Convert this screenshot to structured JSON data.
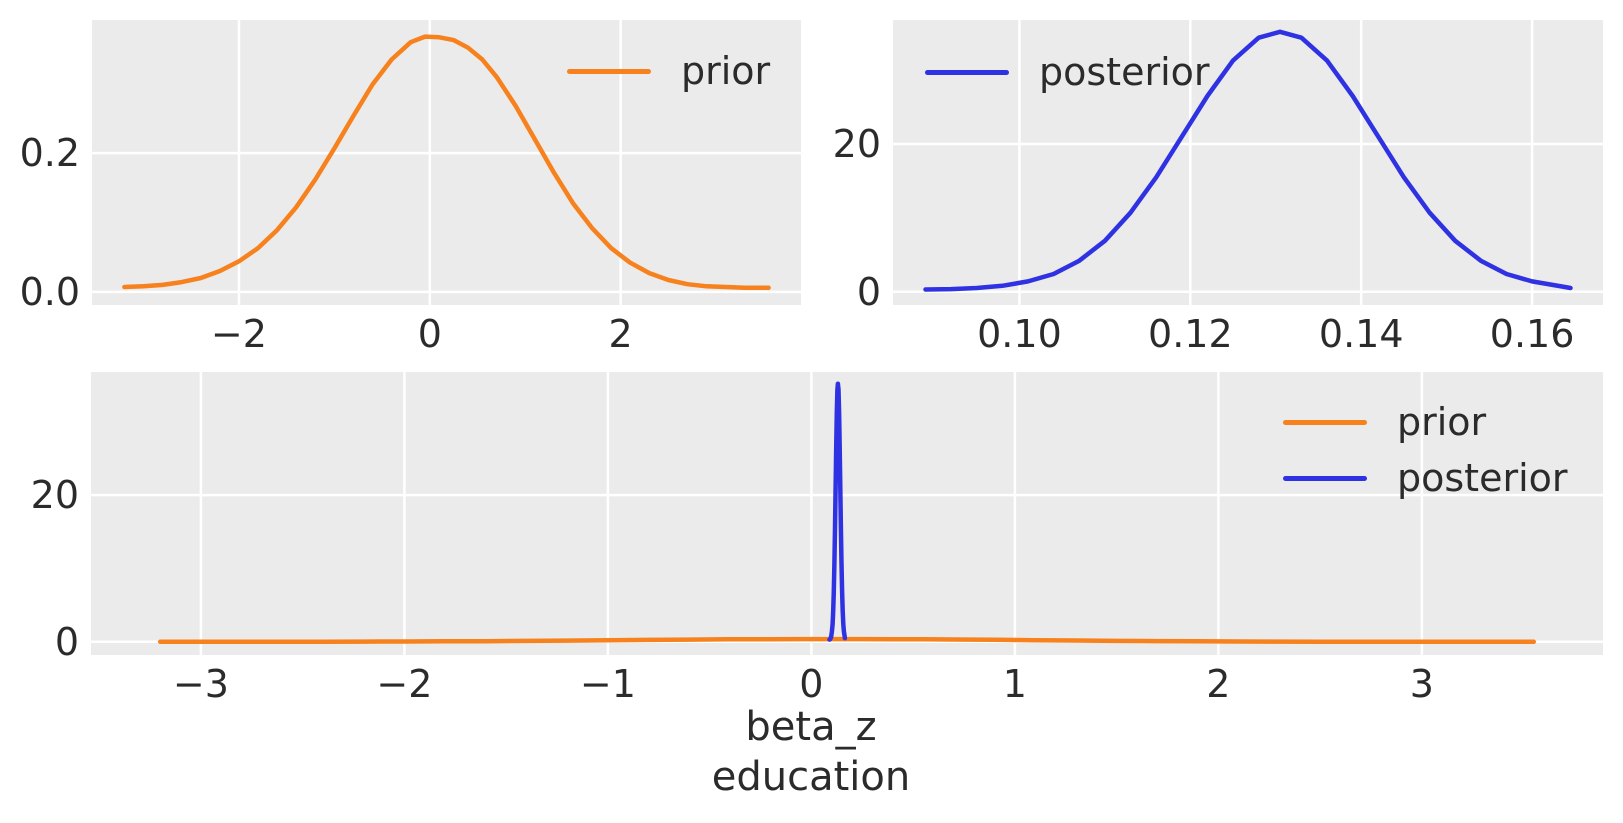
{
  "figure": {
    "background": "#ffffff",
    "axes_background": "#ebebeb",
    "grid_color": "#ffffff",
    "text_color": "#2b2b2b",
    "accent_colors": {
      "prior": "#f6811d",
      "posterior": "#2f32e2"
    }
  },
  "chart_data": [
    {
      "id": "prior-marginal",
      "type": "line",
      "title": "",
      "xlabel": "",
      "ylabel": "",
      "xlim": [
        -3.54,
        3.89
      ],
      "ylim": [
        -0.019,
        0.392
      ],
      "xticks": [
        -2,
        0,
        2
      ],
      "xtick_labels": [
        "−2",
        "0",
        "2"
      ],
      "yticks": [
        0.0,
        0.2
      ],
      "ytick_labels": [
        "0.0",
        "0.2"
      ],
      "grid": true,
      "legend": {
        "position": "upper-right",
        "frame": false,
        "entries": [
          {
            "label": "prior",
            "series": 0
          }
        ]
      },
      "series": [
        {
          "name": "prior",
          "color": "#f6811d",
          "x": [
            -3.2,
            -3.0,
            -2.8,
            -2.6,
            -2.4,
            -2.2,
            -2.0,
            -1.8,
            -1.6,
            -1.4,
            -1.2,
            -1.0,
            -0.8,
            -0.6,
            -0.4,
            -0.2,
            -0.05,
            0.1,
            0.25,
            0.4,
            0.55,
            0.7,
            0.9,
            1.1,
            1.3,
            1.5,
            1.7,
            1.9,
            2.1,
            2.3,
            2.5,
            2.7,
            2.9,
            3.1,
            3.3,
            3.55
          ],
          "y": [
            0.007,
            0.008,
            0.01,
            0.014,
            0.02,
            0.03,
            0.044,
            0.063,
            0.089,
            0.122,
            0.162,
            0.207,
            0.254,
            0.299,
            0.335,
            0.36,
            0.368,
            0.367,
            0.363,
            0.352,
            0.335,
            0.31,
            0.268,
            0.22,
            0.172,
            0.128,
            0.092,
            0.063,
            0.042,
            0.027,
            0.017,
            0.011,
            0.008,
            0.007,
            0.006,
            0.006
          ]
        }
      ]
    },
    {
      "id": "posterior-marginal",
      "type": "line",
      "title": "",
      "xlabel": "",
      "ylabel": "",
      "xlim": [
        0.0852,
        0.1683
      ],
      "ylim": [
        -1.8,
        36.8
      ],
      "xticks": [
        0.1,
        0.12,
        0.14,
        0.16
      ],
      "xtick_labels": [
        "0.10",
        "0.12",
        "0.14",
        "0.16"
      ],
      "yticks": [
        0,
        20
      ],
      "ytick_labels": [
        "0",
        "20"
      ],
      "grid": true,
      "legend": {
        "position": "upper-left",
        "frame": false,
        "entries": [
          {
            "label": "posterior",
            "series": 0
          }
        ]
      },
      "series": [
        {
          "name": "posterior",
          "color": "#2f32e2",
          "x": [
            0.089,
            0.092,
            0.095,
            0.098,
            0.101,
            0.104,
            0.107,
            0.11,
            0.113,
            0.116,
            0.119,
            0.122,
            0.125,
            0.128,
            0.1305,
            0.133,
            0.136,
            0.139,
            0.142,
            0.145,
            0.148,
            0.151,
            0.154,
            0.157,
            0.16,
            0.1635,
            0.1645
          ],
          "y": [
            0.3,
            0.35,
            0.5,
            0.8,
            1.4,
            2.4,
            4.2,
            6.9,
            10.7,
            15.5,
            21.0,
            26.5,
            31.3,
            34.4,
            35.2,
            34.4,
            31.3,
            26.5,
            21.0,
            15.5,
            10.7,
            6.9,
            4.2,
            2.4,
            1.4,
            0.7,
            0.5
          ]
        }
      ]
    },
    {
      "id": "prior-posterior-combined",
      "type": "line",
      "title": "",
      "xlabel": "beta_z education",
      "xlabel_lines": [
        "beta_z",
        "education"
      ],
      "ylabel": "",
      "xlim": [
        -3.54,
        3.89
      ],
      "ylim": [
        -1.8,
        36.8
      ],
      "xticks": [
        -3,
        -2,
        -1,
        0,
        1,
        2,
        3
      ],
      "xtick_labels": [
        "−3",
        "−2",
        "−1",
        "0",
        "1",
        "2",
        "3"
      ],
      "yticks": [
        0,
        20
      ],
      "ytick_labels": [
        "0",
        "20"
      ],
      "grid": true,
      "legend": {
        "position": "upper-right",
        "frame": false,
        "entries": [
          {
            "label": "prior",
            "series": 0
          },
          {
            "label": "posterior",
            "series": 1
          }
        ]
      },
      "series": [
        {
          "name": "prior",
          "color": "#f6811d",
          "x": [
            -3.2,
            -3.0,
            -2.8,
            -2.6,
            -2.4,
            -2.2,
            -2.0,
            -1.8,
            -1.6,
            -1.4,
            -1.2,
            -1.0,
            -0.8,
            -0.6,
            -0.4,
            -0.2,
            -0.05,
            0.1,
            0.25,
            0.4,
            0.55,
            0.7,
            0.9,
            1.1,
            1.3,
            1.5,
            1.7,
            1.9,
            2.1,
            2.3,
            2.5,
            2.7,
            2.9,
            3.1,
            3.3,
            3.55
          ],
          "y": [
            0.007,
            0.008,
            0.01,
            0.014,
            0.02,
            0.03,
            0.044,
            0.063,
            0.089,
            0.122,
            0.162,
            0.207,
            0.254,
            0.299,
            0.335,
            0.36,
            0.368,
            0.367,
            0.363,
            0.352,
            0.335,
            0.31,
            0.268,
            0.22,
            0.172,
            0.128,
            0.092,
            0.063,
            0.042,
            0.027,
            0.017,
            0.011,
            0.008,
            0.007,
            0.006,
            0.006
          ]
        },
        {
          "name": "posterior",
          "color": "#2f32e2",
          "x": [
            0.089,
            0.092,
            0.095,
            0.098,
            0.101,
            0.104,
            0.107,
            0.11,
            0.113,
            0.116,
            0.119,
            0.122,
            0.125,
            0.128,
            0.1305,
            0.133,
            0.136,
            0.139,
            0.142,
            0.145,
            0.148,
            0.151,
            0.154,
            0.157,
            0.16,
            0.1635,
            0.1645
          ],
          "y": [
            0.3,
            0.35,
            0.5,
            0.8,
            1.4,
            2.4,
            4.2,
            6.9,
            10.7,
            15.5,
            21.0,
            26.5,
            31.3,
            34.4,
            35.2,
            34.4,
            31.3,
            26.5,
            21.0,
            15.5,
            10.7,
            6.9,
            4.2,
            2.4,
            1.4,
            0.7,
            0.5
          ]
        }
      ]
    }
  ]
}
